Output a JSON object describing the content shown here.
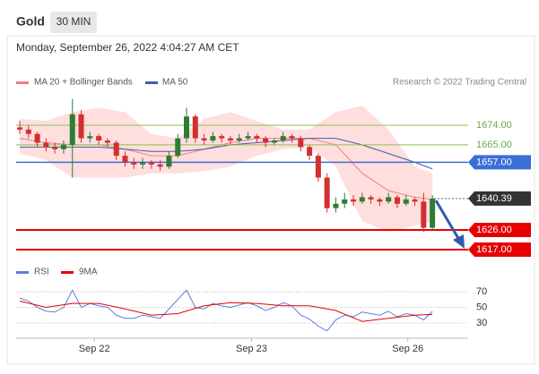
{
  "chart_data": {
    "type": "candlestick",
    "title": "Gold",
    "timeframe": "30 MIN",
    "subtitle": "Monday, September 26, 2022 4:04:27 AM CET",
    "credit": "Research © 2022 Trading Central",
    "ylim": [
      1613.7,
      1691.2
    ],
    "up_color": "#2e7d32",
    "down_color": "#d32f2f",
    "candles": [
      [
        1673,
        1676,
        1670,
        1672
      ],
      [
        1672,
        1674,
        1668,
        1670
      ],
      [
        1670,
        1671,
        1664,
        1666
      ],
      [
        1666,
        1668,
        1662,
        1664
      ],
      [
        1664,
        1666,
        1661,
        1663
      ],
      [
        1663,
        1667,
        1661,
        1665
      ],
      [
        1665,
        1686,
        1650,
        1679
      ],
      [
        1679,
        1681,
        1666,
        1668
      ],
      [
        1668,
        1671,
        1666,
        1669
      ],
      [
        1669,
        1670,
        1665,
        1667
      ],
      [
        1667,
        1668,
        1664,
        1666
      ],
      [
        1666,
        1667,
        1658,
        1660
      ],
      [
        1660,
        1662,
        1655,
        1657
      ],
      [
        1657,
        1659,
        1654,
        1656
      ],
      [
        1656,
        1659,
        1654,
        1657
      ],
      [
        1657,
        1658,
        1654,
        1656
      ],
      [
        1656,
        1658,
        1653,
        1655
      ],
      [
        1655,
        1662,
        1654,
        1660
      ],
      [
        1660,
        1670,
        1659,
        1668
      ],
      [
        1668,
        1682,
        1666,
        1678
      ],
      [
        1678,
        1679,
        1666,
        1668
      ],
      [
        1668,
        1670,
        1665,
        1667
      ],
      [
        1667,
        1671,
        1666,
        1669
      ],
      [
        1669,
        1670,
        1666,
        1668
      ],
      [
        1668,
        1669,
        1665,
        1667
      ],
      [
        1667,
        1670,
        1666,
        1668
      ],
      [
        1668,
        1671,
        1667,
        1669
      ],
      [
        1669,
        1670,
        1666,
        1668
      ],
      [
        1668,
        1669,
        1664,
        1666
      ],
      [
        1666,
        1668,
        1665,
        1667
      ],
      [
        1667,
        1671,
        1666,
        1669
      ],
      [
        1669,
        1670,
        1666,
        1668
      ],
      [
        1668,
        1669,
        1662,
        1664
      ],
      [
        1664,
        1665,
        1658,
        1660
      ],
      [
        1660,
        1661,
        1648,
        1650
      ],
      [
        1650,
        1652,
        1634,
        1636
      ],
      [
        1636,
        1641,
        1634,
        1638
      ],
      [
        1638,
        1643,
        1636,
        1640
      ],
      [
        1640,
        1642,
        1637,
        1639
      ],
      [
        1639,
        1643,
        1638,
        1641
      ],
      [
        1641,
        1642,
        1638,
        1640
      ],
      [
        1640,
        1641,
        1637,
        1639
      ],
      [
        1639,
        1643,
        1638,
        1641
      ],
      [
        1641,
        1642,
        1636,
        1638
      ],
      [
        1638,
        1642,
        1637,
        1640
      ],
      [
        1640,
        1641,
        1637,
        1639
      ],
      [
        1639,
        1643,
        1625,
        1627
      ],
      [
        1627,
        1642,
        1626,
        1640.39
      ]
    ],
    "overlay_x": [
      0,
      3,
      6,
      9,
      12,
      15,
      18,
      21,
      24,
      27,
      30,
      33,
      36,
      39,
      42,
      45,
      47
    ],
    "bollinger": {
      "name": "MA 20 + Bollinger Bands",
      "color": "#f08080",
      "band_color": "#ffdede",
      "ma": [
        1668,
        1666,
        1665,
        1665,
        1663,
        1660,
        1660,
        1663,
        1666,
        1668,
        1668,
        1668,
        1665,
        1652,
        1644,
        1641,
        1640
      ],
      "upper": [
        1677,
        1676,
        1680,
        1682,
        1680,
        1670,
        1668,
        1677,
        1680,
        1676,
        1672,
        1672,
        1680,
        1683,
        1672,
        1655,
        1652
      ],
      "lower": [
        1661,
        1658,
        1650,
        1650,
        1650,
        1652,
        1652,
        1653,
        1655,
        1660,
        1663,
        1664,
        1655,
        1630,
        1625,
        1628,
        1630
      ]
    },
    "ma50": {
      "name": "MA 50",
      "color": "#3f5fa8",
      "values": [
        1664,
        1664,
        1664,
        1664,
        1663,
        1662,
        1662,
        1663,
        1665,
        1666,
        1667,
        1668,
        1668,
        1665,
        1661,
        1657,
        1654
      ]
    },
    "levels": [
      {
        "value": 1674,
        "label": "1674.00",
        "color": "#8bc34a",
        "style": "line"
      },
      {
        "value": 1665,
        "label": "1665.00",
        "color": "#8bc34a",
        "style": "line"
      },
      {
        "value": 1657,
        "label": "1657.00",
        "color": "#3a6fd8",
        "style": "box"
      },
      {
        "value": 1640.39,
        "color": "#333333",
        "style": "dotted"
      },
      {
        "value": 1626,
        "label": "1626.00",
        "color": "#e60000",
        "style": "box"
      },
      {
        "value": 1617,
        "label": "1617.00",
        "color": "#e60000",
        "style": "box"
      }
    ],
    "xticks": [
      {
        "value": 8.5,
        "label": "Sep 22"
      },
      {
        "value": 26.4,
        "label": "Sep 23"
      },
      {
        "value": 44.2,
        "label": "Sep 26"
      }
    ],
    "rsi": {
      "name": "RSI",
      "color": "#5b7fdc",
      "ylim": [
        14,
        82.6
      ],
      "yticks": [
        70,
        50,
        30
      ],
      "values": [
        62,
        58,
        50,
        45,
        44,
        50,
        72,
        50,
        55,
        52,
        50,
        40,
        36,
        36,
        40,
        38,
        36,
        48,
        60,
        72,
        50,
        48,
        55,
        52,
        50,
        53,
        56,
        52,
        46,
        50,
        56,
        52,
        40,
        35,
        26,
        20,
        34,
        40,
        38,
        44,
        42,
        40,
        45,
        38,
        42,
        40,
        34,
        45
      ],
      "ma_name": "9MA",
      "ma_color": "#e60000",
      "ma": [
        58,
        50,
        55,
        55,
        48,
        40,
        42,
        52,
        56,
        55,
        52,
        52,
        46,
        32,
        36,
        40,
        41
      ]
    }
  }
}
